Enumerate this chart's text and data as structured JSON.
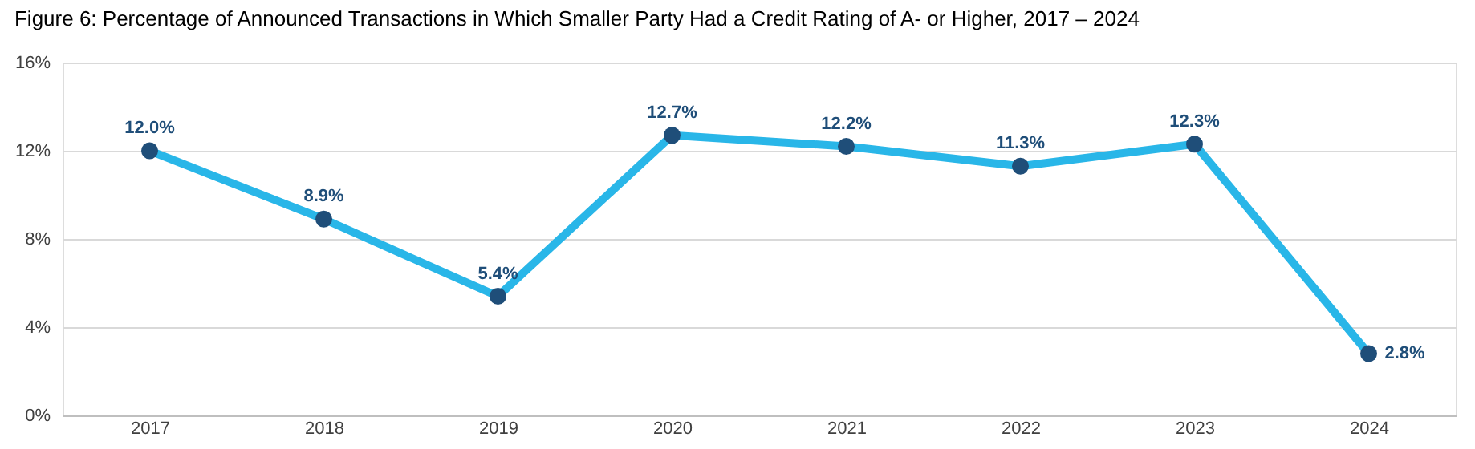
{
  "chart_data": {
    "type": "line",
    "title": "Figure 6: Percentage of Announced Transactions in Which Smaller Party Had a Credit Rating of A- or Higher, 2017 – 2024",
    "categories": [
      "2017",
      "2018",
      "2019",
      "2020",
      "2021",
      "2022",
      "2023",
      "2024"
    ],
    "series": [
      {
        "color": "#29b6e8",
        "values": [
          12.0,
          8.9,
          5.4,
          12.7,
          12.2,
          11.3,
          12.3,
          2.8
        ],
        "value_labels": [
          "12.0%",
          "8.9%",
          "5.4%",
          "12.7%",
          "12.2%",
          "11.3%",
          "12.3%",
          "2.8%"
        ]
      }
    ],
    "colors": [
      "#1f4e79",
      "#1f4e79",
      "#1f4e79",
      "#1f4e79",
      "#1f4e79",
      "#1f4e79",
      "#1f4e79",
      "#1f4e79"
    ],
    "ylim": [
      0,
      16
    ],
    "yticks": [
      {
        "value": 0,
        "label": "0%"
      },
      {
        "value": 4,
        "label": "4%"
      },
      {
        "value": 8,
        "label": "8%"
      },
      {
        "value": 12,
        "label": "12%"
      },
      {
        "value": 16,
        "label": "16%"
      }
    ],
    "grid": "y",
    "marker": "circle",
    "line_style": "solid"
  }
}
